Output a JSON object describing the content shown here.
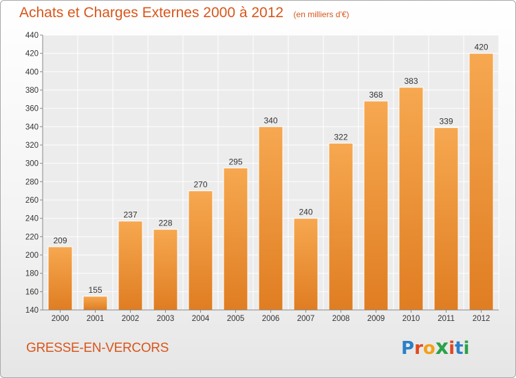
{
  "header": {
    "title": "Achats et Charges Externes 2000 à 2012",
    "unit": "(en milliers d'€)"
  },
  "footer": {
    "commune": "GRESSE-EN-VERCORS",
    "logo_letters": [
      "P",
      "r",
      "o",
      "x",
      "i",
      "t",
      "i"
    ]
  },
  "colors": {
    "accent": "#d8561b",
    "bar_top": "#f6a850",
    "bar_bottom": "#e07d22",
    "logo": [
      "#2a80c8",
      "#e0481e",
      "#f2a11b",
      "#2aa24a",
      "#e0481e",
      "#2a80c8",
      "#2aa24a"
    ]
  },
  "chart_data": {
    "type": "bar",
    "title": "Achats et Charges Externes 2000 à 2012",
    "subtitle": "(en milliers d'€)",
    "categories": [
      "2000",
      "2001",
      "2002",
      "2003",
      "2004",
      "2005",
      "2006",
      "2007",
      "2008",
      "2009",
      "2010",
      "2011",
      "2012"
    ],
    "values": [
      209,
      155,
      237,
      228,
      270,
      295,
      340,
      240,
      322,
      368,
      383,
      339,
      420
    ],
    "data_labels": [
      "209",
      "155",
      "237",
      "228",
      "270",
      "295",
      "340",
      "240",
      "322",
      "368",
      "383",
      "339",
      "420"
    ],
    "ylim": [
      140,
      440
    ],
    "yticks": [
      140,
      160,
      180,
      200,
      220,
      240,
      260,
      280,
      300,
      320,
      340,
      360,
      380,
      400,
      420,
      440
    ],
    "ytick_labels": [
      "140",
      "160",
      "180",
      "200",
      "220",
      "240",
      "260",
      "280",
      "300",
      "320",
      "340",
      "360",
      "380",
      "400",
      "420",
      "440"
    ],
    "grid": true,
    "xlabel": "",
    "ylabel": ""
  }
}
